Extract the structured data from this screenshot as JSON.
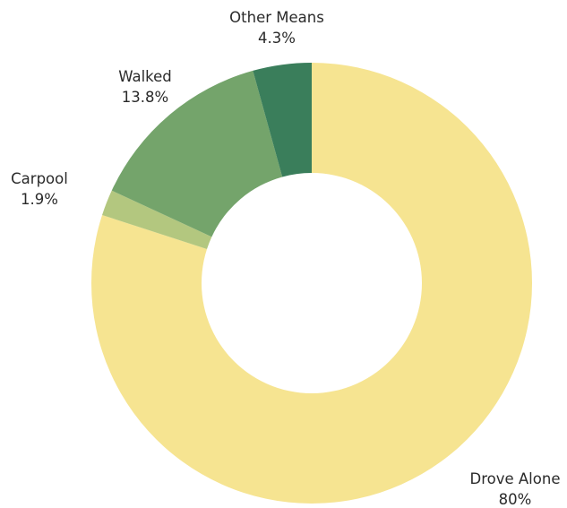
{
  "chart_data": {
    "type": "pie",
    "variant": "donut",
    "slices": [
      {
        "label": "Drove Alone",
        "value": 80,
        "value_label": "80%",
        "color": "#f6e491"
      },
      {
        "label": "Carpool",
        "value": 1.9,
        "value_label": "1.9%",
        "color": "#b3c77f"
      },
      {
        "label": "Walked",
        "value": 13.8,
        "value_label": "13.8%",
        "color": "#74a46b"
      },
      {
        "label": "Other Means",
        "value": 4.3,
        "value_label": "4.3%",
        "color": "#3a7e5b"
      }
    ],
    "legend": "none"
  }
}
